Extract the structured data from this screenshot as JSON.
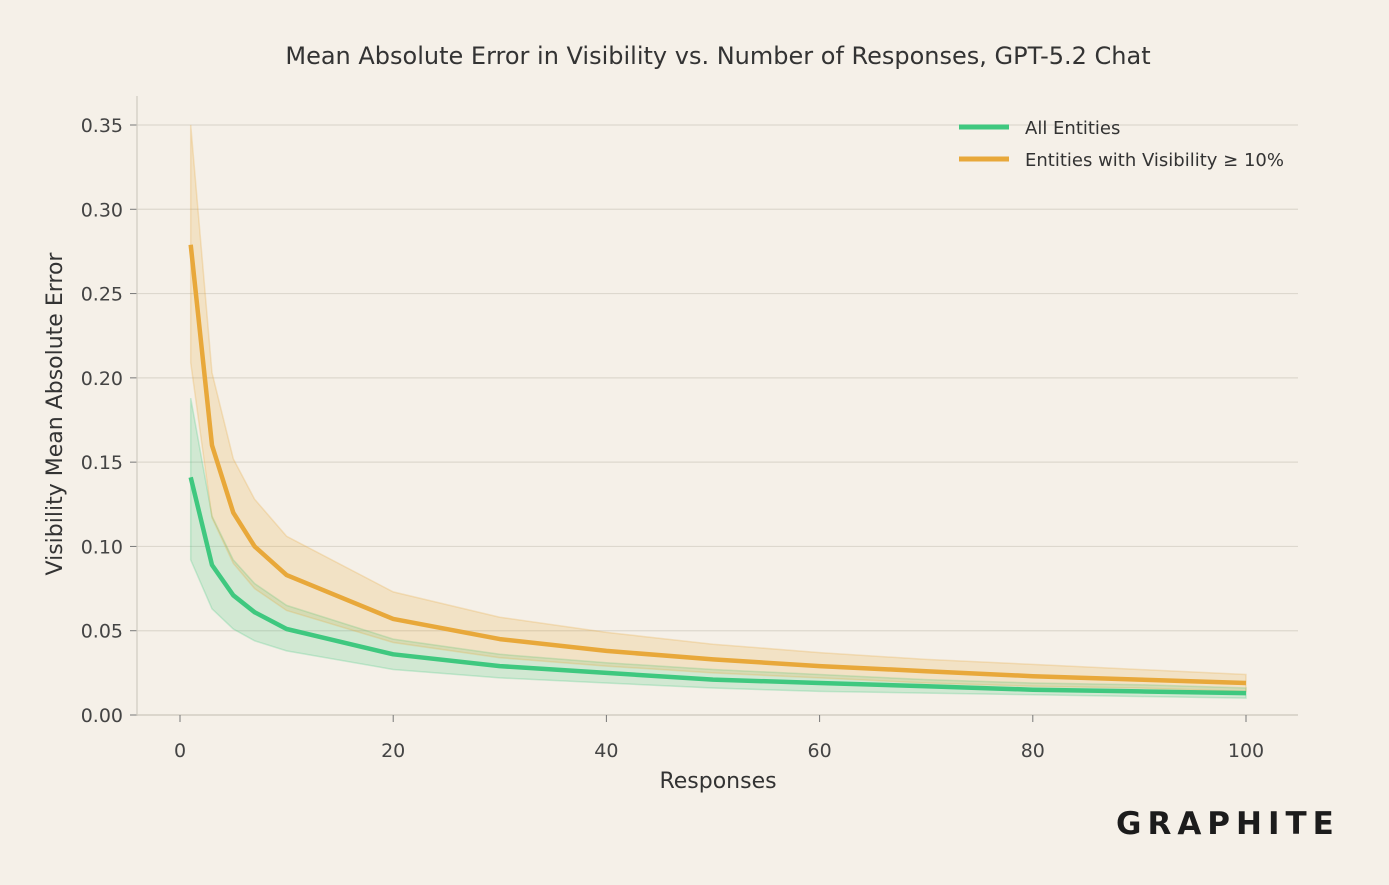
{
  "chart_data": {
    "type": "line",
    "title": "Mean Absolute Error in Visibility vs. Number of Responses, GPT-5.2 Chat",
    "xlabel": "Responses",
    "ylabel": "Visibility Mean Absolute Error",
    "xlim": [
      -4,
      105
    ],
    "ylim": [
      0,
      0.35
    ],
    "x_ticks": [
      "0",
      "20",
      "40",
      "60",
      "80",
      "100"
    ],
    "y_ticks": [
      "0.00",
      "0.05",
      "0.10",
      "0.15",
      "0.20",
      "0.25",
      "0.30",
      "0.35"
    ],
    "legend_position": "top-right",
    "grid": "horizontal",
    "x": [
      1,
      3,
      5,
      7,
      10,
      20,
      30,
      40,
      50,
      60,
      70,
      80,
      90,
      100
    ],
    "series": [
      {
        "name": "All Entities",
        "color": "#3fc87f",
        "values": [
          0.141,
          0.089,
          0.071,
          0.061,
          0.051,
          0.036,
          0.029,
          0.025,
          0.021,
          0.019,
          0.017,
          0.015,
          0.014,
          0.013
        ],
        "lower": [
          0.092,
          0.063,
          0.051,
          0.044,
          0.038,
          0.027,
          0.022,
          0.019,
          0.016,
          0.014,
          0.013,
          0.012,
          0.011,
          0.01
        ],
        "upper": [
          0.188,
          0.118,
          0.092,
          0.078,
          0.065,
          0.045,
          0.036,
          0.031,
          0.027,
          0.024,
          0.021,
          0.019,
          0.018,
          0.016
        ]
      },
      {
        "name": "Entities with Visibility ≥ 10%",
        "color": "#e8a83a",
        "values": [
          0.279,
          0.16,
          0.12,
          0.1,
          0.083,
          0.057,
          0.045,
          0.038,
          0.033,
          0.029,
          0.026,
          0.023,
          0.021,
          0.019
        ],
        "lower": [
          0.209,
          0.117,
          0.09,
          0.075,
          0.062,
          0.043,
          0.034,
          0.029,
          0.025,
          0.022,
          0.019,
          0.017,
          0.016,
          0.014
        ],
        "upper": [
          0.35,
          0.203,
          0.152,
          0.128,
          0.106,
          0.073,
          0.058,
          0.049,
          0.042,
          0.037,
          0.033,
          0.03,
          0.027,
          0.024
        ]
      }
    ]
  },
  "branding": {
    "logo_text": "GRAPHITE"
  }
}
